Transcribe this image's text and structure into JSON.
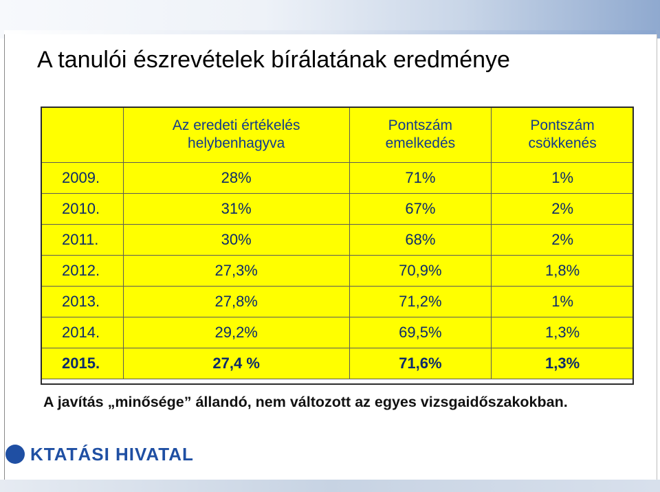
{
  "title": "A tanulói észrevételek bírálatának eredménye",
  "table": {
    "headers": [
      "",
      "Az eredeti értékelés helybenhagyva",
      "Pontszám emelkedés",
      "Pontszám csökkenés"
    ],
    "rows": [
      [
        "2009.",
        "28%",
        "71%",
        "1%"
      ],
      [
        "2010.",
        "31%",
        "67%",
        "2%"
      ],
      [
        "2011.",
        "30%",
        "68%",
        "2%"
      ],
      [
        "2012.",
        "27,3%",
        "70,9%",
        "1,8%"
      ],
      [
        "2013.",
        "27,8%",
        "71,2%",
        "1%"
      ],
      [
        "2014.",
        "29,2%",
        "69,5%",
        "1,3%"
      ],
      [
        "2015.",
        "27,4 %",
        "71,6%",
        "1,3%"
      ]
    ]
  },
  "footnote": "A javítás „minősége” állandó, nem változott az egyes vizsgaidőszakokban.",
  "logo_text": "KTATÁSI HIVATAL",
  "colors": {
    "table_bg": "#ffff00",
    "text_blue": "#0b2a6b",
    "logo_blue": "#1f4fa3"
  }
}
